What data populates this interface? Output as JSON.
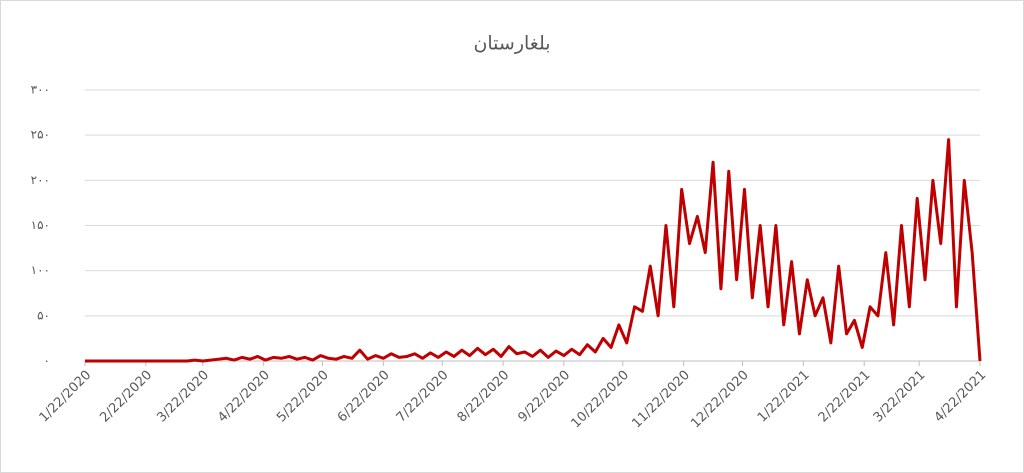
{
  "chart_data": {
    "type": "line",
    "title": "بلغارستان",
    "x": [
      "1/22/2020",
      "1/26/2020",
      "1/30/2020",
      "2/3/2020",
      "2/7/2020",
      "2/11/2020",
      "2/15/2020",
      "2/19/2020",
      "2/23/2020",
      "2/27/2020",
      "3/2/2020",
      "3/6/2020",
      "3/10/2020",
      "3/14/2020",
      "3/18/2020",
      "3/22/2020",
      "3/26/2020",
      "3/30/2020",
      "4/3/2020",
      "4/7/2020",
      "4/11/2020",
      "4/15/2020",
      "4/19/2020",
      "4/23/2020",
      "4/27/2020",
      "5/1/2020",
      "5/5/2020",
      "5/9/2020",
      "5/13/2020",
      "5/17/2020",
      "5/21/2020",
      "5/25/2020",
      "5/29/2020",
      "6/2/2020",
      "6/6/2020",
      "6/10/2020",
      "6/14/2020",
      "6/18/2020",
      "6/22/2020",
      "6/26/2020",
      "6/30/2020",
      "7/4/2020",
      "7/8/2020",
      "7/12/2020",
      "7/16/2020",
      "7/20/2020",
      "7/24/2020",
      "7/28/2020",
      "8/1/2020",
      "8/5/2020",
      "8/9/2020",
      "8/13/2020",
      "8/17/2020",
      "8/21/2020",
      "8/25/2020",
      "8/29/2020",
      "9/2/2020",
      "9/6/2020",
      "9/10/2020",
      "9/14/2020",
      "9/18/2020",
      "9/22/2020",
      "9/26/2020",
      "9/30/2020",
      "10/4/2020",
      "10/8/2020",
      "10/12/2020",
      "10/16/2020",
      "10/20/2020",
      "10/24/2020",
      "10/28/2020",
      "11/1/2020",
      "11/5/2020",
      "11/9/2020",
      "11/13/2020",
      "11/17/2020",
      "11/21/2020",
      "11/25/2020",
      "11/29/2020",
      "12/3/2020",
      "12/7/2020",
      "12/11/2020",
      "12/15/2020",
      "12/19/2020",
      "12/23/2020",
      "12/27/2020",
      "12/31/2020",
      "1/4/2021",
      "1/8/2021",
      "1/12/2021",
      "1/16/2021",
      "1/20/2021",
      "1/24/2021",
      "1/28/2021",
      "2/1/2021",
      "2/5/2021",
      "2/9/2021",
      "2/13/2021",
      "2/17/2021",
      "2/21/2021",
      "2/25/2021",
      "3/1/2021",
      "3/5/2021",
      "3/9/2021",
      "3/13/2021",
      "3/17/2021",
      "3/21/2021",
      "3/25/2021",
      "3/29/2021",
      "4/2/2021",
      "4/6/2021",
      "4/10/2021",
      "4/14/2021",
      "4/18/2021",
      "4/22/2021"
    ],
    "series": [
      {
        "color": "#c00000",
        "values": [
          0,
          0,
          0,
          0,
          0,
          0,
          0,
          0,
          0,
          0,
          0,
          0,
          0,
          0,
          1,
          0,
          1,
          2,
          3,
          1,
          4,
          2,
          5,
          1,
          4,
          3,
          5,
          2,
          4,
          1,
          6,
          3,
          2,
          5,
          3,
          12,
          2,
          6,
          3,
          8,
          4,
          5,
          8,
          3,
          9,
          4,
          10,
          5,
          12,
          6,
          14,
          7,
          13,
          5,
          16,
          8,
          10,
          5,
          12,
          4,
          11,
          6,
          13,
          7,
          18,
          10,
          25,
          15,
          40,
          20,
          60,
          55,
          105,
          50,
          150,
          60,
          190,
          130,
          160,
          120,
          220,
          80,
          210,
          90,
          190,
          70,
          150,
          60,
          150,
          40,
          110,
          30,
          90,
          50,
          70,
          20,
          105,
          30,
          45,
          15,
          60,
          50,
          120,
          40,
          150,
          60,
          180,
          90,
          200,
          130,
          245,
          60,
          200,
          120,
          0
        ]
      }
    ],
    "xlim": [
      "1/22/2020",
      "4/22/2021"
    ],
    "xticks": [
      "1/22/2020",
      "2/22/2020",
      "3/22/2020",
      "4/22/2020",
      "5/22/2020",
      "6/22/2020",
      "7/22/2020",
      "8/22/2020",
      "9/22/2020",
      "10/22/2020",
      "11/22/2020",
      "12/22/2020",
      "1/22/2021",
      "2/22/2021",
      "3/22/2021",
      "4/22/2021"
    ],
    "ylim": [
      0,
      300
    ],
    "yticks": [
      {
        "value": 0,
        "label": "۰"
      },
      {
        "value": 50,
        "label": "۵۰"
      },
      {
        "value": 100,
        "label": "۱۰۰"
      },
      {
        "value": 150,
        "label": "۱۵۰"
      },
      {
        "value": 200,
        "label": "۲۰۰"
      },
      {
        "value": 250,
        "label": "۲۵۰"
      },
      {
        "value": 300,
        "label": "۳۰۰"
      }
    ],
    "grid": true
  }
}
